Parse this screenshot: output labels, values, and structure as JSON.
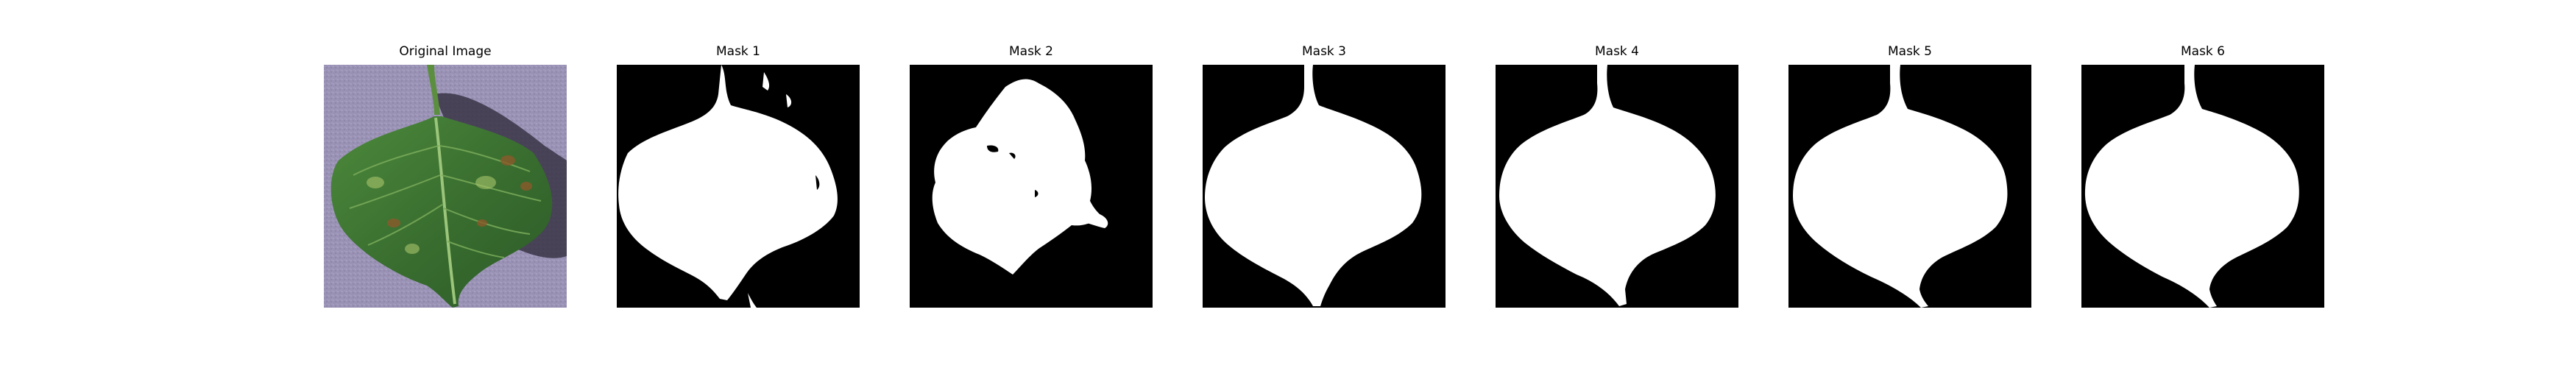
{
  "figure": {
    "panels": [
      {
        "title": "Original Image",
        "kind": "photo-leaf-icon"
      },
      {
        "title": "Mask 1",
        "kind": "mask-icon"
      },
      {
        "title": "Mask 2",
        "kind": "mask-icon"
      },
      {
        "title": "Mask 3",
        "kind": "mask-icon"
      },
      {
        "title": "Mask 4",
        "kind": "mask-icon"
      },
      {
        "title": "Mask 5",
        "kind": "mask-icon"
      },
      {
        "title": "Mask 6",
        "kind": "mask-icon"
      }
    ],
    "colors": {
      "mask_background": "#000000",
      "mask_foreground": "#ffffff",
      "leaf_green": "#3f7a35",
      "surface_purple": "#9b93b5"
    }
  }
}
